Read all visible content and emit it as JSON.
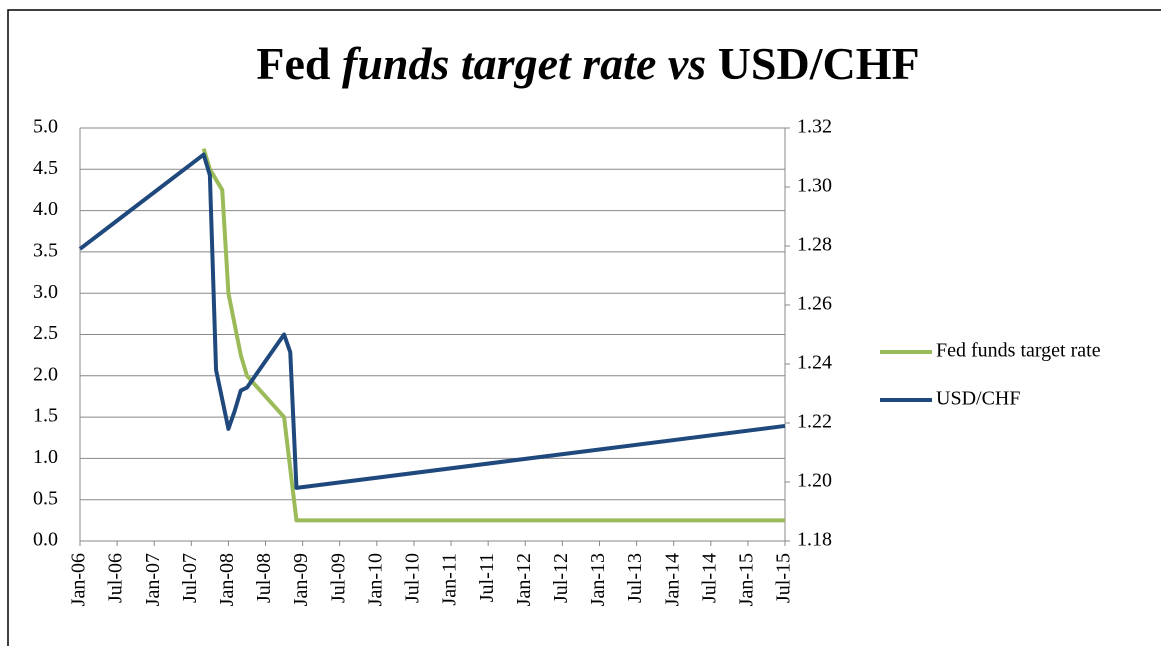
{
  "chart_data": {
    "type": "line",
    "title": [
      "Fed ",
      "funds target rate vs",
      " USD/CHF"
    ],
    "title_italic": [
      false,
      true,
      false
    ],
    "xlim": [
      "Jan-06",
      "Jul-15"
    ],
    "xticks": [
      "Jan-06",
      "Jul-06",
      "Jan-07",
      "Jul-07",
      "Jan-08",
      "Jul-08",
      "Jan-09",
      "Jul-09",
      "Jan-10",
      "Jul-10",
      "Jan-11",
      "Jul-11",
      "Jan-12",
      "Jul-12",
      "Jan-13",
      "Jul-13",
      "Jan-14",
      "Jul-14",
      "Jan-15",
      "Jul-15"
    ],
    "ylim": [
      0,
      5
    ],
    "yticks": [
      {
        "value": 0,
        "label": "0.0"
      },
      0.5,
      {
        "value": 1,
        "label": "1.0"
      },
      1.5,
      {
        "value": 2,
        "label": "2.0"
      },
      2.5,
      {
        "value": 3,
        "label": "3.0"
      },
      3.5,
      {
        "value": 4,
        "label": "4.0"
      },
      4.5,
      {
        "value": 5,
        "label": "5.0"
      }
    ],
    "y2lim": [
      1.18,
      1.32
    ],
    "y2ticks": [
      1.18,
      {
        "value": 1.2,
        "label": "1.20"
      },
      1.22,
      1.24,
      1.26,
      1.28,
      {
        "value": 1.3,
        "label": "1.30"
      },
      1.32
    ],
    "grid": true,
    "legend": "right",
    "series": [
      {
        "name": "Fed funds target rate",
        "color": "#9bbb59",
        "x": [
          "Sep-07",
          "Oct-07",
          "Dec-07",
          "Jan-08",
          "Mar-08",
          "Apr-08",
          "Oct-08",
          "Dec-08",
          "Jul-15"
        ],
        "values": [
          4.75,
          4.5,
          4.25,
          3.0,
          2.25,
          2.0,
          1.5,
          0.25,
          0.25
        ]
      },
      {
        "name": "USD/CHF",
        "color": "#1f497d",
        "axis": "y2",
        "x": [
          "Jan-06",
          "Sep-07",
          "Oct-07",
          "Nov-07",
          "Jan-08",
          "Feb-08",
          "Mar-08",
          "Apr-08",
          "Oct-08",
          "Nov-08",
          "Dec-08",
          "Jul-15"
        ],
        "values": [
          1.279,
          1.311,
          1.304,
          1.238,
          1.218,
          1.224,
          1.231,
          1.232,
          1.25,
          1.244,
          1.198,
          1.219
        ]
      }
    ]
  }
}
